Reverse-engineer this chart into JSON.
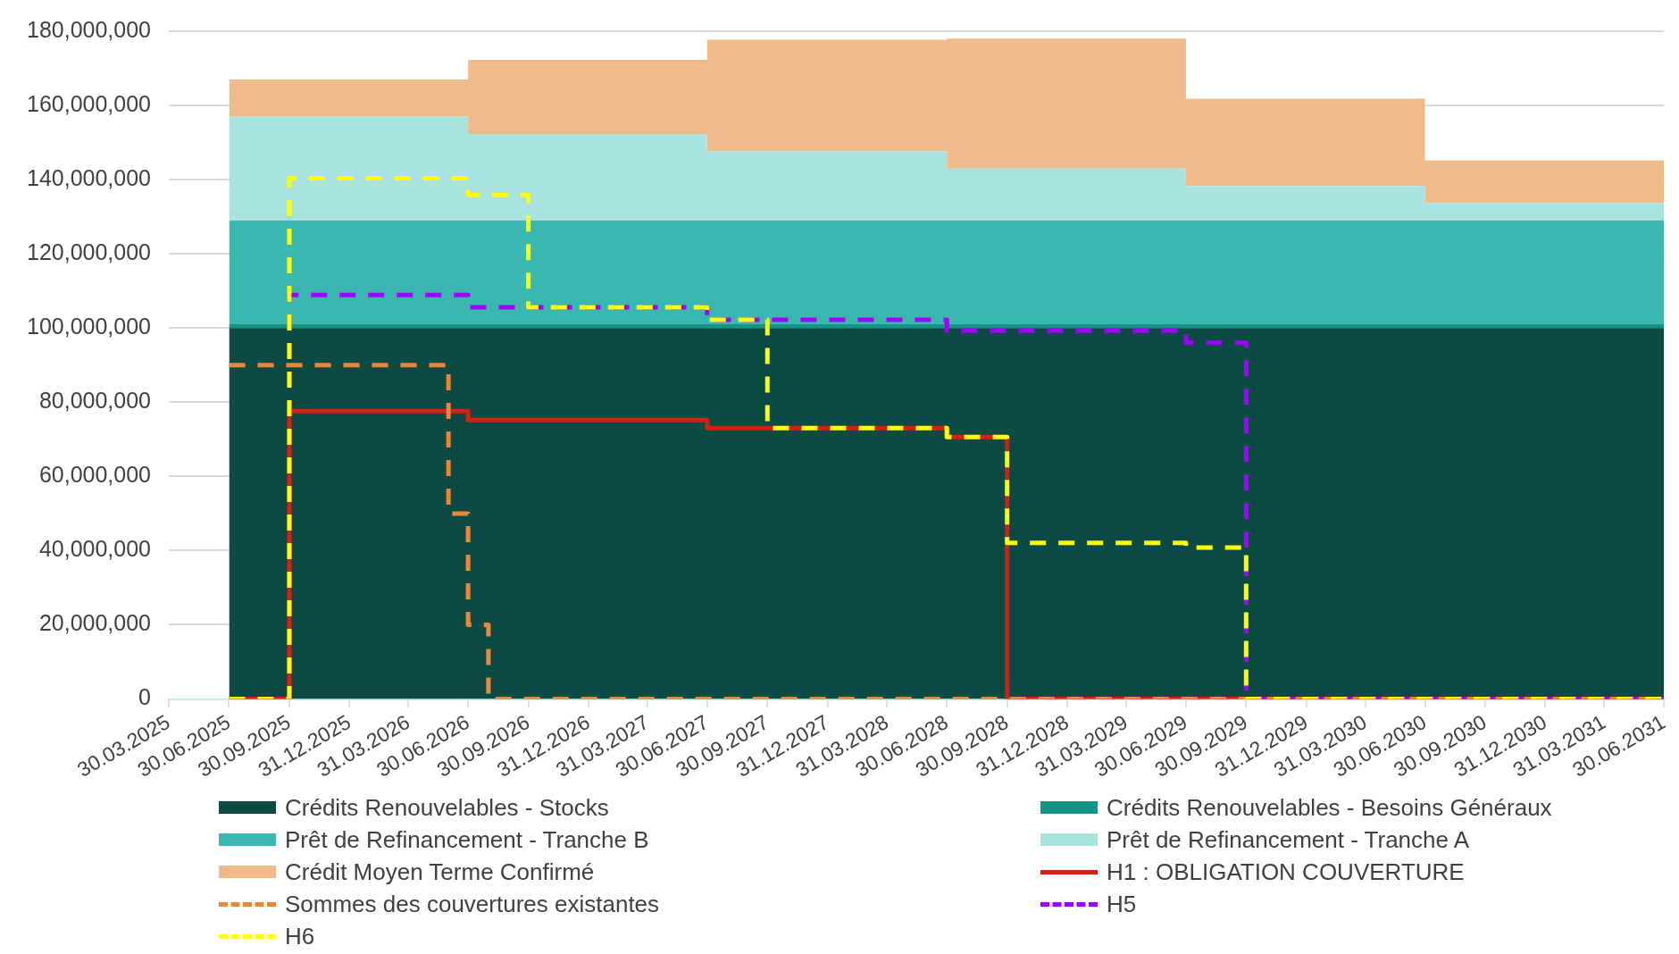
{
  "chart_data": {
    "type": "step",
    "grid": "y",
    "legend": "bottom",
    "stacked": true,
    "xlim": [
      "2025-03-30",
      "2031-06-30"
    ],
    "xticks": [
      {
        "value": "2025-03-30",
        "label": "30.03.2025"
      },
      {
        "value": "2025-06-30",
        "label": "30.06.2025"
      },
      {
        "value": "2025-09-30",
        "label": "30.09.2025"
      },
      {
        "value": "2025-12-31",
        "label": "31.12.2025"
      },
      {
        "value": "2026-03-31",
        "label": "31.03.2026"
      },
      {
        "value": "2026-06-30",
        "label": "30.06.2026"
      },
      {
        "value": "2026-09-30",
        "label": "30.09.2026"
      },
      {
        "value": "2026-12-31",
        "label": "31.12.2026"
      },
      {
        "value": "2027-03-31",
        "label": "31.03.2027"
      },
      {
        "value": "2027-06-30",
        "label": "30.06.2027"
      },
      {
        "value": "2027-09-30",
        "label": "30.09.2027"
      },
      {
        "value": "2027-12-31",
        "label": "31.12.2027"
      },
      {
        "value": "2028-03-31",
        "label": "31.03.2028"
      },
      {
        "value": "2028-06-30",
        "label": "30.06.2028"
      },
      {
        "value": "2028-09-30",
        "label": "30.09.2028"
      },
      {
        "value": "2028-12-31",
        "label": "31.12.2028"
      },
      {
        "value": "2029-03-31",
        "label": "31.03.2029"
      },
      {
        "value": "2029-06-30",
        "label": "30.06.2029"
      },
      {
        "value": "2029-09-30",
        "label": "30.09.2029"
      },
      {
        "value": "2029-12-31",
        "label": "31.12.2029"
      },
      {
        "value": "2030-03-31",
        "label": "31.03.2030"
      },
      {
        "value": "2030-06-30",
        "label": "30.06.2030"
      },
      {
        "value": "2030-09-30",
        "label": "30.09.2030"
      },
      {
        "value": "2030-12-31",
        "label": "31.12.2030"
      },
      {
        "value": "2031-03-31",
        "label": "31.03.2031"
      },
      {
        "value": "2031-06-30",
        "label": "30.06.2031"
      }
    ],
    "ylim": [
      0,
      180000000
    ],
    "yticks": [
      {
        "value": 0,
        "label": "0"
      },
      {
        "value": 20000000,
        "label": "20,000,000"
      },
      {
        "value": 40000000,
        "label": "40,000,000"
      },
      {
        "value": 60000000,
        "label": "60,000,000"
      },
      {
        "value": 80000000,
        "label": "80,000,000"
      },
      {
        "value": 100000000,
        "label": "100,000,000"
      },
      {
        "value": 120000000,
        "label": "120,000,000"
      },
      {
        "value": 140000000,
        "label": "140,000,000"
      },
      {
        "value": 160000000,
        "label": "160,000,000"
      },
      {
        "value": 180000000,
        "label": "180,000,000"
      }
    ],
    "series": [
      {
        "name": "Crédits Renouvelables - Stocks",
        "type": "area",
        "color": "#0b4b43",
        "x": [
          "2025-06-30",
          "2026-06-30",
          "2027-06-30",
          "2028-06-30",
          "2029-06-30",
          "2030-06-30",
          "2031-06-30"
        ],
        "values": [
          100000000,
          100000000,
          100000000,
          100000000,
          100000000,
          100000000,
          100000000
        ]
      },
      {
        "name": "Crédits Renouvelables - Besoins Généraux",
        "type": "area",
        "color": "#149484",
        "x": [
          "2025-06-30",
          "2026-06-30",
          "2027-06-30",
          "2028-06-30",
          "2029-06-30",
          "2030-06-30",
          "2031-06-30"
        ],
        "values": [
          1000000,
          1000000,
          1000000,
          1000000,
          1000000,
          1000000,
          1000000
        ]
      },
      {
        "name": "Prêt de Refinancement - Tranche B",
        "type": "area",
        "color": "#3ab7ae",
        "x": [
          "2025-06-30",
          "2026-06-30",
          "2027-06-30",
          "2028-06-30",
          "2029-06-30",
          "2030-06-30",
          "2031-06-30"
        ],
        "values": [
          28000000,
          28000000,
          28000000,
          28000000,
          28000000,
          28000000,
          28000000
        ]
      },
      {
        "name": "Prêt de Refinancement - Tranche A",
        "type": "area",
        "color": "#a8e3de",
        "x": [
          "2025-06-30",
          "2026-06-30",
          "2027-06-30",
          "2028-06-30",
          "2029-06-30",
          "2030-06-30",
          "2031-06-30"
        ],
        "values": [
          28000000,
          23300000,
          18700000,
          14000000,
          9300000,
          4700000,
          4700000
        ]
      },
      {
        "name": "Crédit Moyen Terme Confirmé",
        "type": "area",
        "color": "#f0b98a",
        "x": [
          "2025-06-30",
          "2026-06-30",
          "2027-06-30",
          "2028-06-30",
          "2029-06-30",
          "2030-06-30",
          "2031-06-30"
        ],
        "values": [
          10000000,
          20000000,
          30000000,
          35000000,
          23500000,
          11500000,
          11500000
        ]
      },
      {
        "name": "H1 : OBLIGATION COUVERTURE",
        "type": "step",
        "color": "#d42010",
        "line_style": "solid",
        "x": [
          "2025-06-30",
          "2025-09-30",
          "2026-06-30",
          "2027-06-30",
          "2028-06-30",
          "2028-09-30",
          "2031-06-30"
        ],
        "values": [
          0,
          77600000,
          75200000,
          73000000,
          70600000,
          0,
          0
        ]
      },
      {
        "name": "Sommes des couvertures existantes",
        "type": "step",
        "color": "#e8893a",
        "line_style": "dashed",
        "x": [
          "2025-06-30",
          "2026-05-31",
          "2026-06-30",
          "2026-07-31",
          "2031-06-30"
        ],
        "values": [
          90000000,
          50000000,
          20000000,
          0,
          0
        ]
      },
      {
        "name": "H5",
        "type": "step",
        "color": "#a000ff",
        "line_style": "dashed",
        "x": [
          "2025-06-30",
          "2025-09-30",
          "2026-06-30",
          "2027-06-30",
          "2028-06-30",
          "2029-06-30",
          "2029-09-30",
          "2031-06-30"
        ],
        "values": [
          0,
          108900000,
          105600000,
          102200000,
          99300000,
          96000000,
          0,
          0
        ]
      },
      {
        "name": "H6",
        "type": "step",
        "color": "#ffff00",
        "line_style": "dashed",
        "x": [
          "2025-06-30",
          "2025-09-30",
          "2026-06-30",
          "2026-09-30",
          "2027-06-30",
          "2027-09-30",
          "2028-06-30",
          "2028-09-30",
          "2029-06-30",
          "2029-09-30",
          "2031-06-30"
        ],
        "values": [
          0,
          140400000,
          135900000,
          105600000,
          102200000,
          73000000,
          70600000,
          42100000,
          40800000,
          0,
          0
        ]
      }
    ]
  }
}
